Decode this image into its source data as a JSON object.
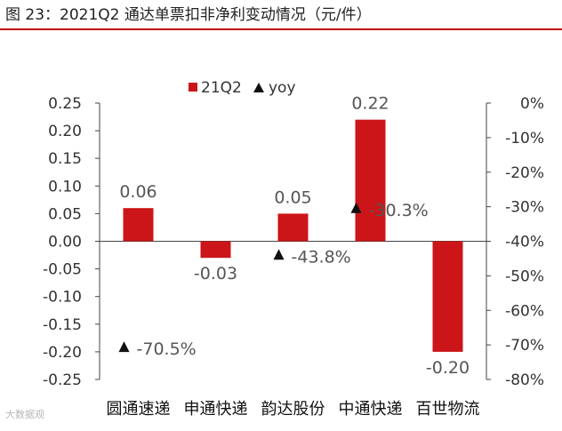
{
  "title": "图 23：2021Q2 通达单票扣非净利变动情况（元/件）",
  "watermark": "大数据观",
  "colors": {
    "bar": "#cc1518",
    "marker": "#111111",
    "axis": "#444444",
    "text": "#333333",
    "accent": "#c00000"
  },
  "chart_data": {
    "type": "bar",
    "categories": [
      "圆通速递",
      "申通快递",
      "韵达股份",
      "中通快递",
      "百世物流"
    ],
    "series": [
      {
        "name": "21Q2",
        "type": "bar",
        "axis": "left",
        "values": [
          0.06,
          -0.03,
          0.05,
          0.22,
          -0.2
        ],
        "data_labels": [
          "0.06",
          "-0.03",
          "0.05",
          "0.22",
          "-0.20"
        ]
      },
      {
        "name": "yoy",
        "type": "scatter",
        "marker": "triangle",
        "axis": "right",
        "values": [
          -70.5,
          null,
          -43.8,
          -30.3,
          null
        ],
        "data_labels": [
          "-70.5%",
          "",
          "-43.8%",
          "-30.3%",
          ""
        ]
      }
    ],
    "y_left": {
      "min": -0.25,
      "max": 0.25,
      "step": 0.05,
      "ticks": [
        "0.25",
        "0.20",
        "0.15",
        "0.10",
        "0.05",
        "0.00",
        "-0.05",
        "-0.10",
        "-0.15",
        "-0.20",
        "-0.25"
      ]
    },
    "y_right": {
      "min": -80,
      "max": 0,
      "step": 10,
      "ticks": [
        "0%",
        "-10%",
        "-20%",
        "-30%",
        "-40%",
        "-50%",
        "-60%",
        "-70%",
        "-80%"
      ]
    },
    "legend": {
      "position": "top",
      "entries": [
        "21Q2",
        "yoy"
      ]
    },
    "grid": false
  }
}
